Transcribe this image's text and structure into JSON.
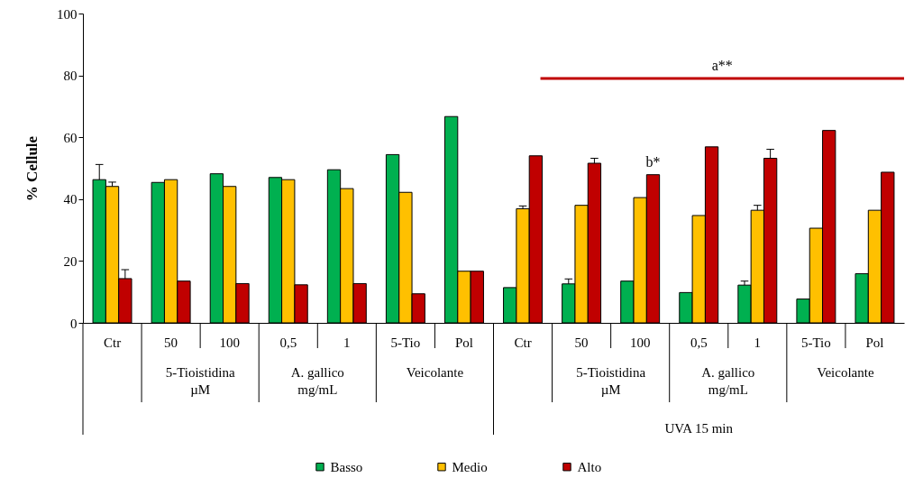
{
  "chart_data": {
    "type": "bar",
    "ylabel": "% Cellule",
    "categories": [
      "Ctr",
      "50",
      "100",
      "0,5",
      "1",
      "5-Tio",
      "Pol",
      "Ctr",
      "50",
      "100",
      "0,5",
      "1",
      "5-Tio",
      "Pol"
    ],
    "series": [
      {
        "name": "Basso",
        "color": "#00b050",
        "values": [
          46.3,
          45.4,
          48.2,
          47.0,
          49.5,
          54.4,
          66.7,
          11.4,
          12.6,
          13.5,
          9.8,
          12.2,
          7.7,
          15.9
        ],
        "errors": [
          4.9,
          null,
          null,
          null,
          null,
          null,
          null,
          null,
          1.6,
          null,
          null,
          1.3,
          null,
          null
        ]
      },
      {
        "name": "Medio",
        "color": "#ffc000",
        "values": [
          44.1,
          46.3,
          44.1,
          46.3,
          43.4,
          42.2,
          16.7,
          36.9,
          38.0,
          40.5,
          34.7,
          36.4,
          30.6,
          36.4
        ],
        "errors": [
          1.4,
          null,
          null,
          null,
          null,
          null,
          null,
          0.9,
          null,
          null,
          null,
          1.6,
          null,
          null
        ]
      },
      {
        "name": "Alto",
        "color": "#c00000",
        "values": [
          14.3,
          13.5,
          12.7,
          12.3,
          12.7,
          9.4,
          16.7,
          54.0,
          51.6,
          47.9,
          56.9,
          53.2,
          62.2,
          48.7
        ],
        "errors": [
          2.9,
          null,
          null,
          null,
          null,
          null,
          null,
          null,
          1.6,
          null,
          null,
          2.9,
          null,
          null
        ]
      }
    ],
    "ylim": [
      0,
      100
    ],
    "yticks": [
      0,
      20,
      40,
      60,
      80,
      100
    ],
    "grid": false,
    "legend": "bottom",
    "ref_lines": [
      {
        "axis": "y",
        "value": 79,
        "label": "a**",
        "color": "#c00000"
      }
    ],
    "annotations": [
      "b*",
      "5-Tioistidina\nµM",
      "A. gallico\nmg/mL",
      "Veicolante",
      "5-Tioistidina\nµM",
      "A. gallico\nmg/mL",
      "Veicolante",
      "UVA 15 min"
    ]
  }
}
